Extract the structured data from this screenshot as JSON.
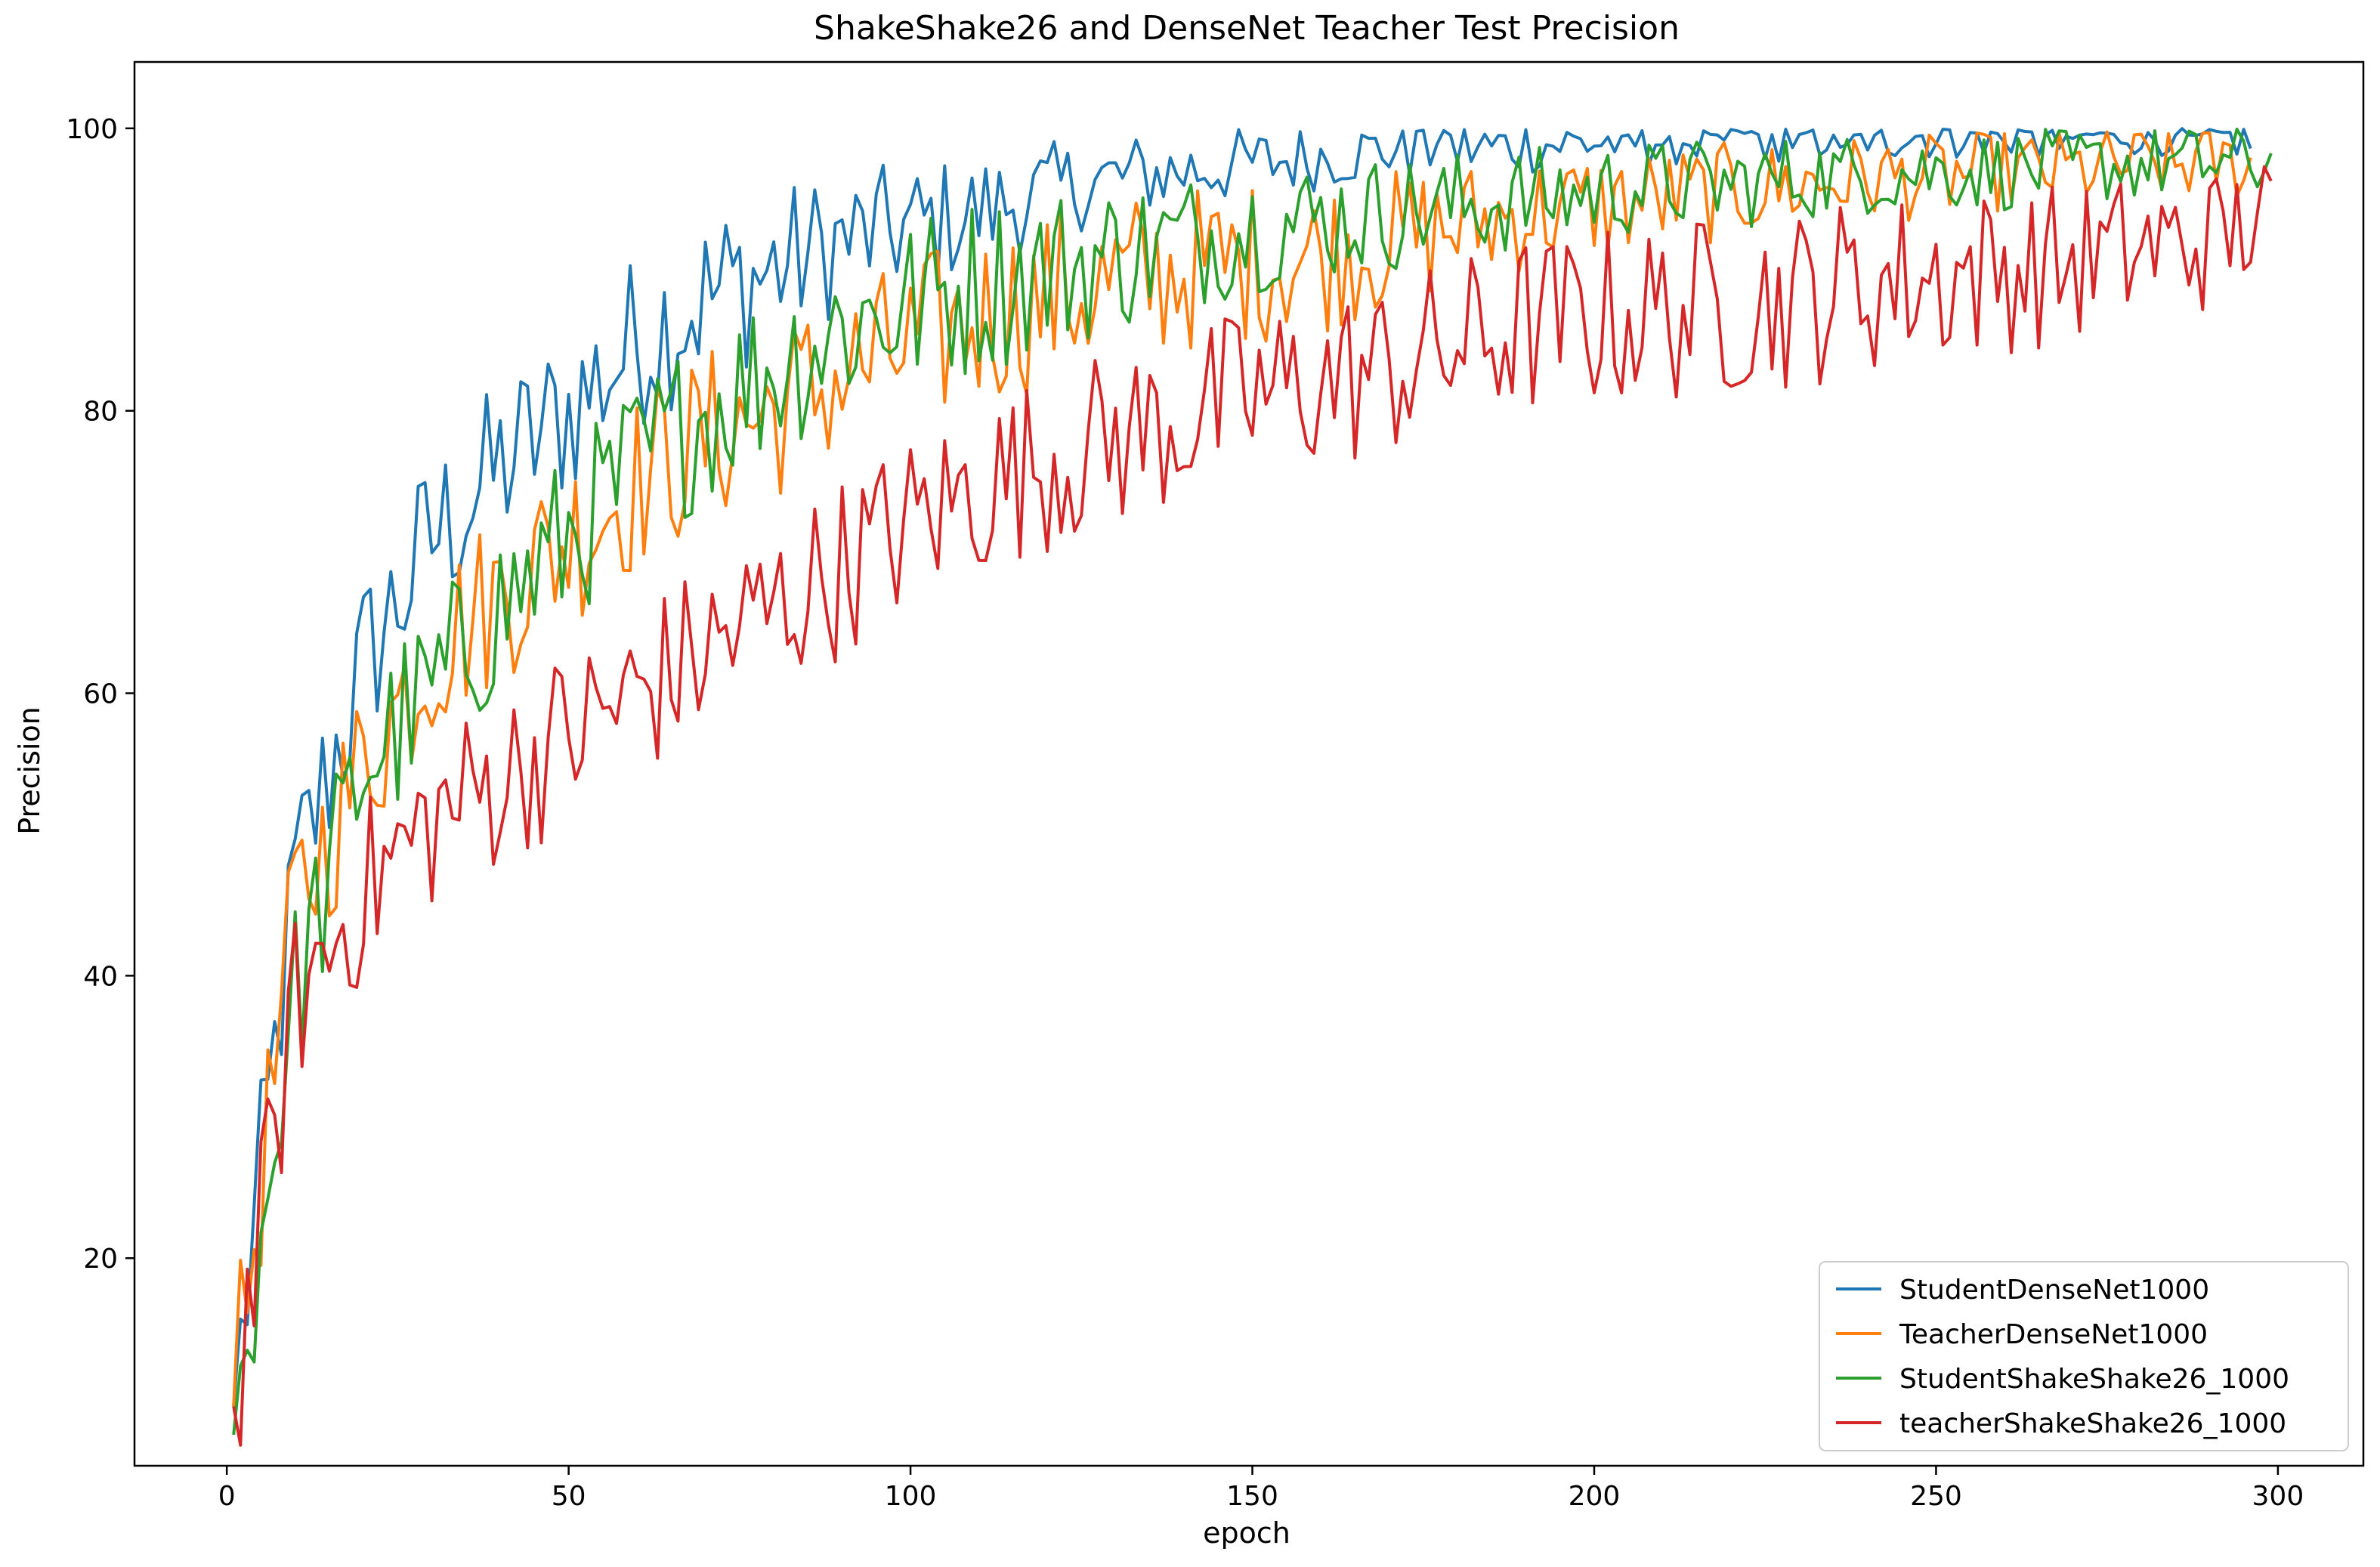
{
  "chart_data": {
    "type": "line",
    "title": "ShakeShake26 and DenseNet Teacher Test Precision",
    "xlabel": "epoch",
    "ylabel": "Precision",
    "xlim": [
      -13.5,
      312.5
    ],
    "ylim": [
      5.3,
      104.7
    ],
    "xticks": [
      0,
      50,
      100,
      150,
      200,
      250,
      300
    ],
    "yticks": [
      20,
      40,
      60,
      80,
      100
    ],
    "grid": false,
    "legend_position": "lower right",
    "series": [
      {
        "name": "StudentDenseNet1000",
        "color": "#1f77b4",
        "x": [
          1,
          10,
          20,
          30,
          40,
          50,
          60,
          70,
          80,
          90,
          100,
          110,
          120,
          130,
          140,
          150,
          160,
          170,
          180,
          190,
          200,
          210,
          220,
          230,
          240,
          250,
          260,
          270,
          280,
          290,
          296
        ],
        "y": [
          9.5,
          47,
          62,
          71,
          76,
          80,
          85,
          88,
          90,
          92,
          93,
          94,
          95.5,
          96.5,
          97,
          97.5,
          98,
          98.5,
          98.5,
          98.8,
          99,
          99.2,
          99.3,
          99.4,
          99.5,
          99.5,
          99.6,
          99.6,
          99.7,
          99.7,
          99.7
        ]
      },
      {
        "name": "TeacherDenseNet1000",
        "color": "#ff7f0e",
        "x": [
          1,
          10,
          20,
          30,
          40,
          50,
          60,
          70,
          80,
          90,
          100,
          110,
          120,
          130,
          140,
          150,
          160,
          170,
          180,
          190,
          200,
          210,
          220,
          230,
          240,
          250,
          260,
          270,
          280,
          290,
          296
        ],
        "y": [
          9.5,
          45,
          55,
          63,
          67,
          71,
          75,
          78,
          80,
          82.5,
          84.5,
          86.5,
          88,
          89,
          90,
          90.5,
          91,
          92,
          93,
          94,
          94.5,
          95,
          95.5,
          96,
          96.5,
          96.5,
          97,
          97,
          97.5,
          97.5,
          97.5
        ]
      },
      {
        "name": "StudentShakeShake26_1000",
        "color": "#2ca02c",
        "x": [
          1,
          10,
          20,
          30,
          40,
          50,
          60,
          70,
          80,
          90,
          100,
          110,
          120,
          130,
          140,
          150,
          160,
          170,
          180,
          190,
          200,
          210,
          220,
          230,
          240,
          250,
          260,
          270,
          280,
          290,
          299
        ],
        "y": [
          7.5,
          39,
          55,
          60,
          66,
          71,
          76,
          80,
          83,
          86,
          87.5,
          89,
          90,
          91,
          92,
          93,
          93.5,
          94,
          94.5,
          95,
          95.5,
          96,
          96,
          96.5,
          96.8,
          97,
          97,
          97.3,
          97.5,
          97.5,
          97.5
        ]
      },
      {
        "name": "teacherShakeShake26_1000",
        "color": "#d62728",
        "x": [
          1,
          10,
          20,
          30,
          40,
          50,
          60,
          70,
          80,
          90,
          100,
          110,
          120,
          130,
          140,
          150,
          160,
          170,
          180,
          190,
          200,
          210,
          220,
          230,
          240,
          250,
          260,
          270,
          280,
          290,
          299
        ],
        "y": [
          9.5,
          38,
          46,
          51,
          54,
          57,
          60,
          63,
          66,
          69,
          72,
          74.5,
          76.5,
          78,
          79.5,
          81,
          82,
          83,
          84.5,
          86,
          86.5,
          87,
          87.5,
          88,
          89,
          89.5,
          90,
          90.5,
          91.5,
          92,
          94
        ]
      }
    ]
  }
}
